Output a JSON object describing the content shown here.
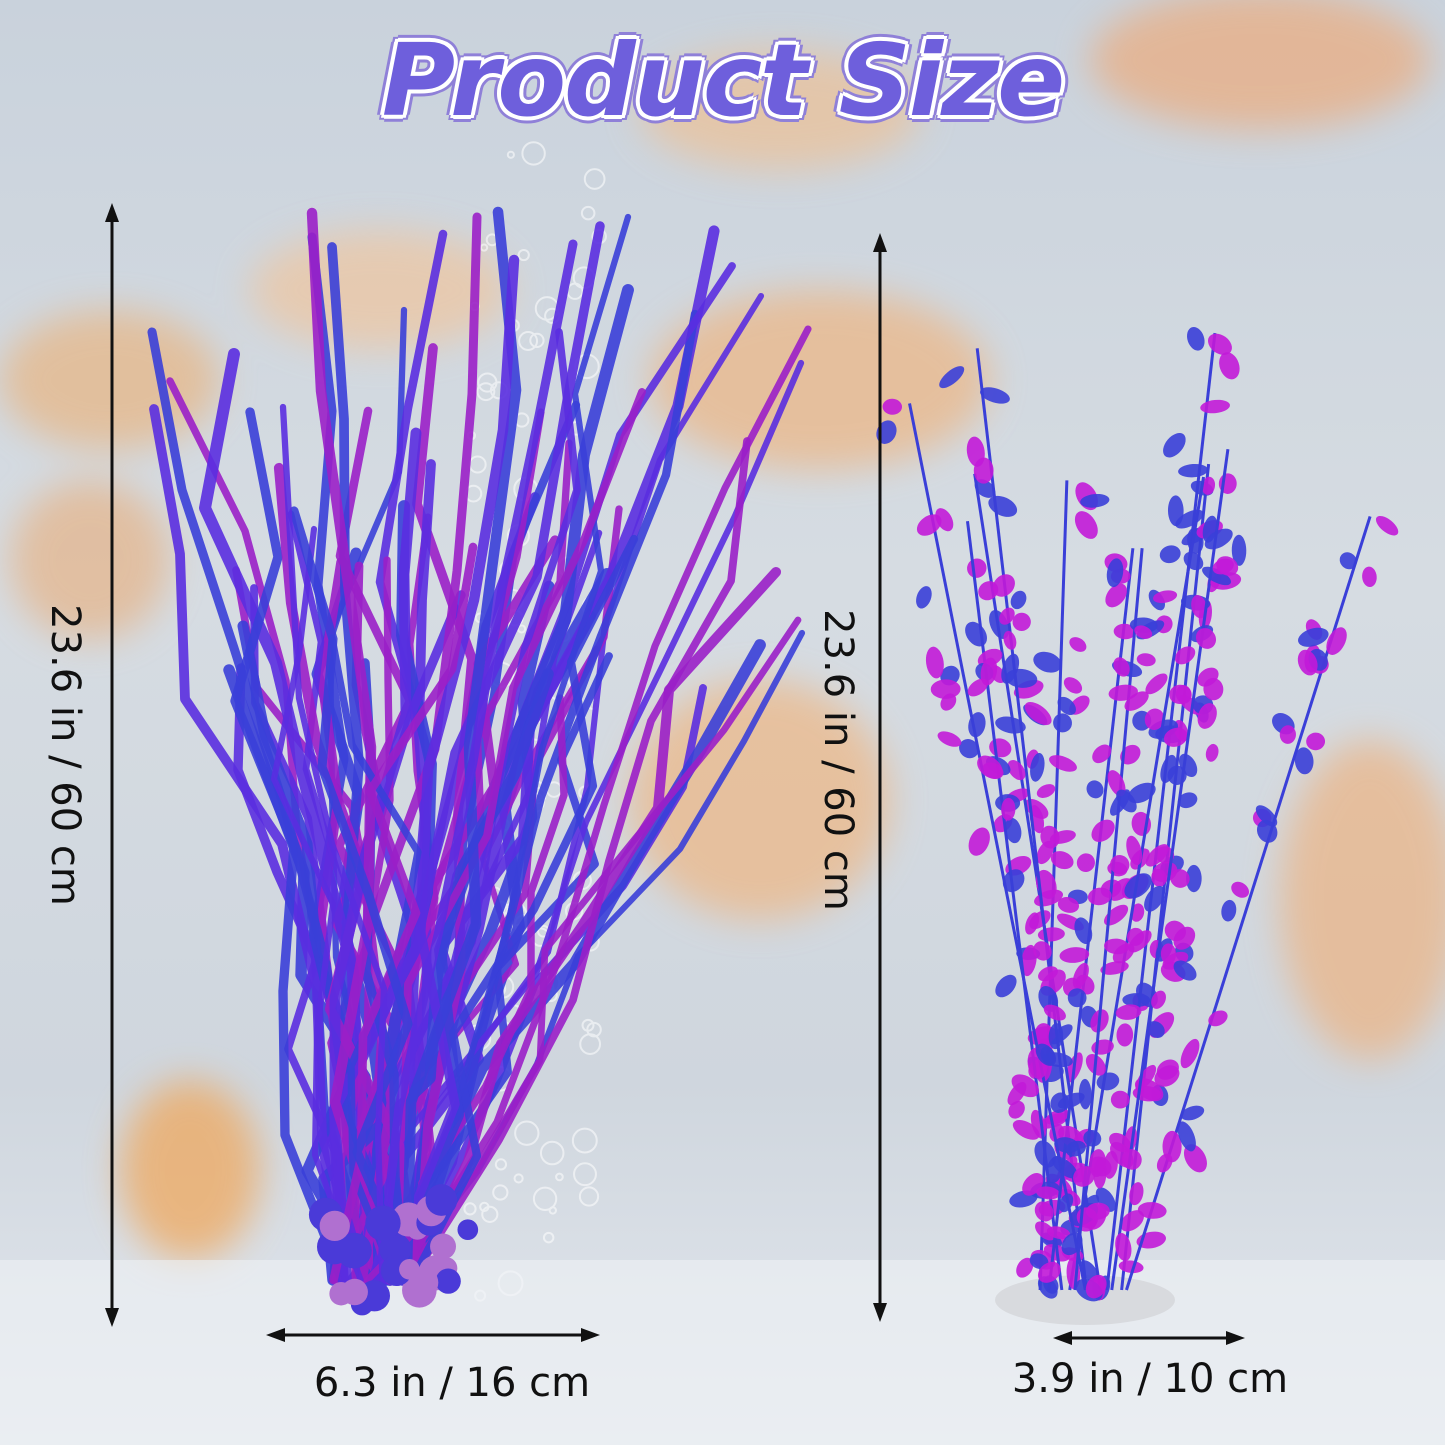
{
  "title": "Product Size",
  "plants": [
    {
      "name": "left-plant",
      "height_label": "23.6 in / 60 cm",
      "width_label": "6.3 in / 16 cm"
    },
    {
      "name": "right-plant",
      "height_label": "23.6 in / 60 cm",
      "width_label": "3.9 in / 10 cm"
    }
  ],
  "colors": {
    "title": "#6e5fdc",
    "leaf_blue": "#3a3fd8",
    "leaf_purple": "#9a1fc8",
    "leaf_magenta": "#c21ad8",
    "fish": "#f0b070"
  }
}
